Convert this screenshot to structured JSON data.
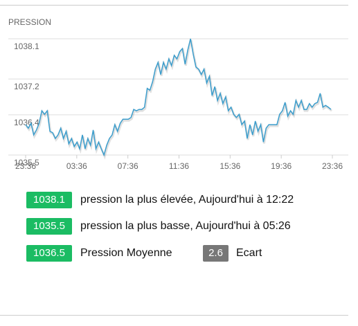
{
  "header": "PRESSION",
  "chart_data": {
    "type": "line",
    "x_labels": [
      "23:36",
      "03:36",
      "07:36",
      "11:36",
      "15:36",
      "19:36",
      "23:36"
    ],
    "series": [
      {
        "color": "#3b9dcc",
        "values": [
          1036.18,
          1036.1,
          1036.21,
          1035.95,
          1036.06,
          1036.21,
          1036.49,
          1036.41,
          1036.49,
          1036.03,
          1036.0,
          1035.87,
          1035.95,
          1036.1,
          1035.87,
          1036.03,
          1035.75,
          1035.87,
          1035.69,
          1035.79,
          1035.64,
          1035.95,
          1035.64,
          1035.87,
          1035.72,
          1036.06,
          1035.64,
          1035.79,
          1035.64,
          1035.5,
          1035.72,
          1035.87,
          1035.95,
          1036.18,
          1036.03,
          1036.21,
          1036.3,
          1036.3,
          1036.3,
          1036.34,
          1036.52,
          1036.49,
          1036.52,
          1036.52,
          1036.57,
          1036.99,
          1036.95,
          1037.14,
          1037.42,
          1037.57,
          1037.3,
          1037.57,
          1037.42,
          1037.65,
          1037.5,
          1037.73,
          1037.65,
          1037.81,
          1037.88,
          1037.53,
          1037.85,
          1038.1,
          1037.76,
          1037.47,
          1037.42,
          1037.3,
          1037.42,
          1037.11,
          1037.26,
          1036.83,
          1037.03,
          1036.72,
          1036.88,
          1036.65,
          1036.8,
          1036.49,
          1036.57,
          1036.41,
          1036.34,
          1036.41,
          1036.18,
          1036.26,
          1035.87,
          1036.18,
          1035.95,
          1036.26,
          1036.03,
          1036.18,
          1035.79,
          1036.1,
          1036.18,
          1036.18,
          1036.18,
          1036.18,
          1036.41,
          1036.49,
          1036.68,
          1036.37,
          1036.49,
          1036.41,
          1036.72,
          1036.57,
          1036.72,
          1036.52,
          1036.52,
          1036.65,
          1036.57,
          1036.65,
          1036.68,
          1036.88,
          1036.57,
          1036.61,
          1036.57,
          1036.52
        ]
      }
    ],
    "ylim": [
      1035.5,
      1038.1
    ],
    "yticks": [
      1035.5,
      1036.4,
      1037.2,
      1038.1
    ],
    "grid": true
  },
  "stats": [
    {
      "value": 1038.1,
      "text": "pression la plus élevée, Aujourd'hui à 12:22"
    },
    {
      "value": 1035.5,
      "text": "pression la plus basse, Aujourd'hui à 05:26"
    },
    {
      "value": 1036.5,
      "text": "Pression Moyenne"
    },
    {
      "value": 2.6,
      "text": "Ecart"
    }
  ]
}
